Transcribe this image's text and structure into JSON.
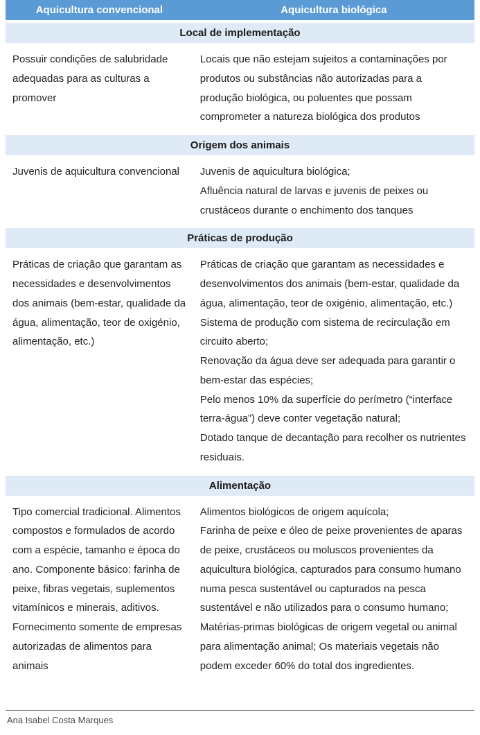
{
  "colors": {
    "header_bg": "#5b9bd5",
    "header_fg": "#ffffff",
    "section_bg": "#deeaf6",
    "section_fg": "#1a1a1a",
    "body_bg": "#ffffff",
    "text": "#222222",
    "rule": "#777777",
    "footer_text": "#4a4a4a"
  },
  "typography": {
    "header_fontsize_pt": 11,
    "section_fontsize_pt": 11,
    "cell_fontsize_pt": 11,
    "line_height": 1.85,
    "font_family": "Arial"
  },
  "table": {
    "columns": [
      {
        "label": "Aquicultura convencional",
        "width_pct": 40
      },
      {
        "label": "Aquicultura biológica",
        "width_pct": 60
      }
    ],
    "sections": [
      {
        "title": "Local de implementação",
        "left": "Possuir condições de salubridade adequadas para as culturas a promover",
        "right": "Locais que não estejam sujeitos a contaminações por produtos ou substâncias não autorizadas para a produção biológica, ou poluentes que possam comprometer a natureza biológica dos produtos"
      },
      {
        "title": "Origem dos animais",
        "left": "Juvenis de aquicultura convencional",
        "right": "Juvenis de aquicultura biológica;\nAfluência natural de larvas e juvenis de peixes ou crustáceos durante o enchimento dos tanques"
      },
      {
        "title": "Práticas de produção",
        "left": "Práticas de criação que garantam as necessidades e desenvolvimentos dos animais (bem-estar, qualidade da água, alimentação, teor de oxigénio, alimentação, etc.)",
        "right": "Práticas de criação que garantam as necessidades e desenvolvimentos dos animais (bem-estar, qualidade da água, alimentação, teor de oxigénio, alimentação, etc.) Sistema de produção com sistema de recirculação em circuito aberto;\nRenovação da água deve ser adequada para garantir o bem-estar das espécies;\nPelo menos 10% da superfície do perímetro (“interface terra-água”) deve conter vegetação natural;\nDotado tanque de decantação para recolher os nutrientes residuais."
      },
      {
        "title": "Alimentação",
        "left": "Tipo comercial tradicional. Alimentos compostos e formulados de acordo com a espécie, tamanho e época do ano. Componente básico: farinha de peixe, fibras vegetais, suplementos vitamínicos e minerais, aditivos. Fornecimento somente de empresas autorizadas de alimentos para animais",
        "right": "Alimentos biológicos de origem aquícola;\nFarinha de peixe e óleo de peixe provenientes de aparas de peixe, crustáceos ou moluscos provenientes da aquicultura biológica, capturados para consumo humano numa pesca sustentável ou capturados na pesca sustentável e não utilizados para o consumo humano;\nMatérias-primas biológicas de origem vegetal ou animal para alimentação animal; Os materiais vegetais não podem exceder 60% do total dos ingredientes."
      }
    ]
  },
  "footer": {
    "author": "Ana Isabel Costa Marques"
  }
}
